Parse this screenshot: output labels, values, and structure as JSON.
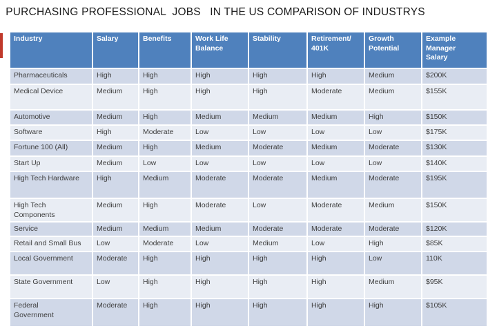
{
  "title": "PURCHASING PROFESSIONAL  JOBS   IN THE US COMPARISON OF INDUSTRYS",
  "table": {
    "columns": [
      "Industry",
      "Salary",
      "Benefits",
      "Work Life\nBalance",
      "Stability",
      "Retirement/\n401K",
      "Growth\nPotential",
      "Example\nManager\nSalary"
    ],
    "rows": [
      [
        "Pharmaceuticals",
        "High",
        "High",
        "High",
        "High",
        "High",
        "Medium",
        "$200K"
      ],
      [
        "Medical Device",
        "Medium",
        "High",
        "High",
        "High",
        "Moderate",
        "Medium",
        "$155K"
      ],
      [
        "Automotive",
        "Medium",
        "High",
        "Medium",
        "Medium",
        "Medium",
        "High",
        "$150K"
      ],
      [
        "Software",
        "High",
        "Moderate",
        "Low",
        "Low",
        "Low",
        "Low",
        "$175K"
      ],
      [
        "Fortune 100 (All)",
        "Medium",
        "High",
        "Medium",
        "Moderate",
        "Medium",
        "Moderate",
        "$130K"
      ],
      [
        "Start Up",
        "Medium",
        "Low",
        "Low",
        "Low",
        "Low",
        "Low",
        "$140K"
      ],
      [
        "High Tech Hardware",
        "High",
        "Medium",
        "Moderate",
        "Moderate",
        "Medium",
        "Moderate",
        "$195K"
      ],
      [
        "High Tech\nComponents",
        "Medium",
        "High",
        "Moderate",
        "Low",
        "Moderate",
        "Medium",
        "$150K"
      ],
      [
        "Service",
        "Medium",
        "Medium",
        "Medium",
        "Moderate",
        "Moderate",
        "Moderate",
        "$120K"
      ],
      [
        "Retail and Small Bus",
        "Low",
        "Moderate",
        "Low",
        "Medium",
        "Low",
        "High",
        "$85K"
      ],
      [
        "Local Government",
        "Moderate",
        "High",
        "High",
        "High",
        "High",
        "Low",
        "110K"
      ],
      [
        "State Government",
        "Low",
        "High",
        "High",
        "High",
        "High",
        "Medium",
        "$95K"
      ],
      [
        "Federal\nGovernment",
        "Moderate",
        "High",
        "High",
        "High",
        "High",
        "High",
        "$105K"
      ]
    ]
  },
  "colors": {
    "header_bg": "#4F81BD",
    "band_dark": "#D0D8E8",
    "band_light": "#E9EDF4",
    "header_text": "#FFFFFF",
    "cell_text": "#404040",
    "accent_red": "#C0392B"
  }
}
